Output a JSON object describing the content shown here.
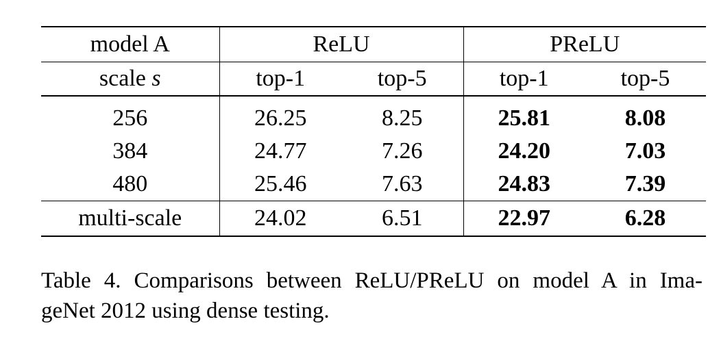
{
  "table": {
    "header_row1": {
      "col0": "model A",
      "group_relu": "ReLU",
      "group_prelu": "PReLU"
    },
    "header_row2": {
      "col0_text": "scale ",
      "col0_symbol": "s",
      "relu_top1": "top-1",
      "relu_top5": "top-5",
      "prelu_top1": "top-1",
      "prelu_top5": "top-5"
    },
    "rows": [
      {
        "scale": "256",
        "relu_top1": "26.25",
        "relu_top5": "8.25",
        "prelu_top1": "25.81",
        "prelu_top5": "8.08"
      },
      {
        "scale": "384",
        "relu_top1": "24.77",
        "relu_top5": "7.26",
        "prelu_top1": "24.20",
        "prelu_top5": "7.03"
      },
      {
        "scale": "480",
        "relu_top1": "25.46",
        "relu_top5": "7.63",
        "prelu_top1": "24.83",
        "prelu_top5": "7.39"
      }
    ],
    "multiscale_row": {
      "scale": "multi-scale",
      "relu_top1": "24.02",
      "relu_top5": "6.51",
      "prelu_top1": "22.97",
      "prelu_top5": "6.28"
    }
  },
  "caption": {
    "line1": "Table 4. Comparisons between ReLU/PReLU on model A in Ima-",
    "line2": "geNet 2012 using dense testing."
  }
}
